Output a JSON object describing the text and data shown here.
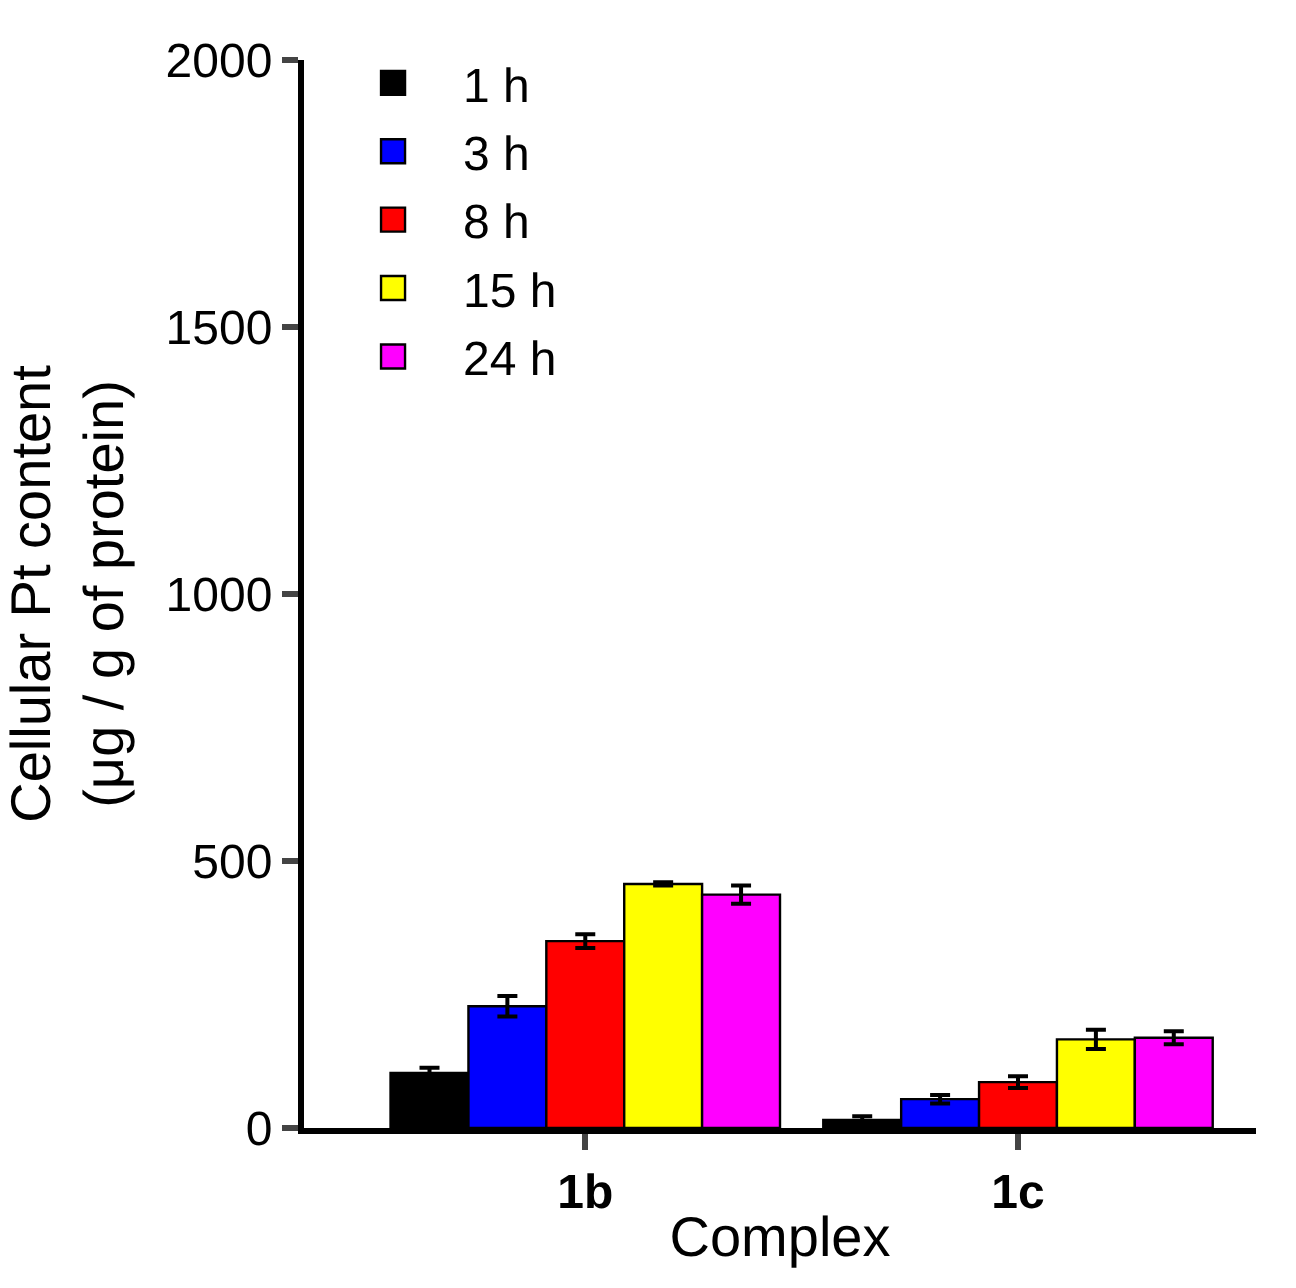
{
  "chart_data": {
    "type": "bar",
    "ylabel": "Cellular Pt content\n(μg / g of protein)",
    "xlabel": "Complex",
    "categories": [
      "1b",
      "1c"
    ],
    "series": [
      {
        "name": "1 h",
        "color": "#000000",
        "values": [
          103,
          15
        ],
        "errors": [
          10,
          7
        ]
      },
      {
        "name": "3 h",
        "color": "#0000ff",
        "values": [
          228,
          54
        ],
        "errors": [
          19,
          8
        ]
      },
      {
        "name": "8 h",
        "color": "#ff0000",
        "values": [
          350,
          86
        ],
        "errors": [
          13,
          11
        ]
      },
      {
        "name": "15 h",
        "color": "#ffff00",
        "values": [
          457,
          166
        ],
        "errors": [
          3,
          18
        ]
      },
      {
        "name": "24 h",
        "color": "#ff00ff",
        "values": [
          437,
          169
        ],
        "errors": [
          17,
          12
        ]
      }
    ],
    "ylim": [
      0,
      2000
    ],
    "yticks": [
      0,
      500,
      1000,
      1500,
      2000
    ],
    "legend": "top left"
  }
}
